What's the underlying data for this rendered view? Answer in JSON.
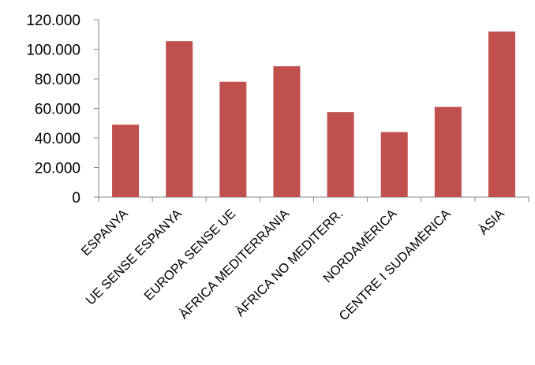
{
  "chart_data": {
    "type": "bar",
    "categories": [
      "ESPANYA",
      "UE SENSE ESPANYA",
      "EUROPA SENSE UE",
      "ÀFRICA MEDITERRÀNIA",
      "ÀFRICA NO MEDITERR.",
      "NORDAMÈRICA",
      "CENTRE I SUDAMÈRICA",
      "ÀSIA"
    ],
    "values": [
      49000,
      105500,
      78000,
      88500,
      57500,
      44000,
      61000,
      112000
    ],
    "y_ticks": [
      "0",
      "20.000",
      "40.000",
      "60.000",
      "80.000",
      "100.000",
      "120.000"
    ],
    "ylim": [
      0,
      120000
    ],
    "grid": false,
    "legend": "none",
    "bar_color": "#c0504d",
    "axis_color": "#868686"
  }
}
